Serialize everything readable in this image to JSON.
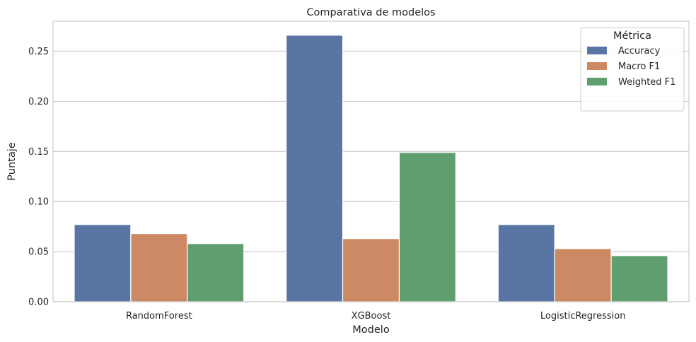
{
  "chart_data": {
    "type": "bar",
    "title": "Comparativa de modelos",
    "xlabel": "Modelo",
    "ylabel": "Puntaje",
    "categories": [
      "RandomForest",
      "XGBoost",
      "LogisticRegression"
    ],
    "series": [
      {
        "name": "Accuracy",
        "color": "#5875a4",
        "values": [
          0.077,
          0.266,
          0.077
        ]
      },
      {
        "name": "Macro F1",
        "color": "#cc8963",
        "values": [
          0.068,
          0.063,
          0.053
        ]
      },
      {
        "name": "Weighted F1",
        "color": "#5f9e6e",
        "values": [
          0.058,
          0.149,
          0.046
        ]
      }
    ],
    "ylim": [
      0,
      0.28
    ],
    "yticks": [
      0.0,
      0.05,
      0.1,
      0.15,
      0.2,
      0.25
    ],
    "ytick_labels": [
      "0.00",
      "0.05",
      "0.10",
      "0.15",
      "0.20",
      "0.25"
    ],
    "grid": "horizontal",
    "legend": {
      "title": "Métrica",
      "placement": "top-right"
    }
  }
}
